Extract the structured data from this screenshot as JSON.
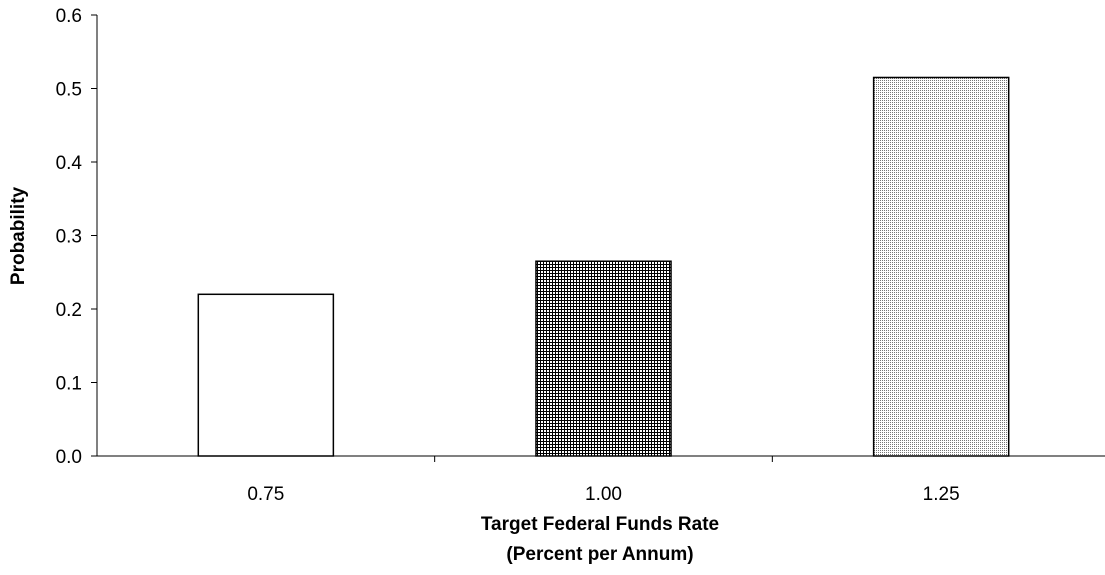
{
  "chart_data": {
    "type": "bar",
    "title": "",
    "categories": [
      "0.75",
      "1.00",
      "1.25"
    ],
    "values": [
      0.22,
      0.265,
      0.515
    ],
    "xlabel": "Target Federal Funds Rate",
    "xlabel_line2": "(Percent per Annum)",
    "ylabel": "Probability",
    "ylim": [
      0,
      0.6
    ],
    "yticks": [
      "0.0",
      "0.1",
      "0.2",
      "0.3",
      "0.4",
      "0.5",
      "0.6"
    ],
    "grid": false,
    "legend": "none",
    "bar_fills": [
      "white",
      "crosshatch",
      "dots"
    ],
    "colors": {
      "stroke": "#000000",
      "background": "#ffffff"
    }
  }
}
